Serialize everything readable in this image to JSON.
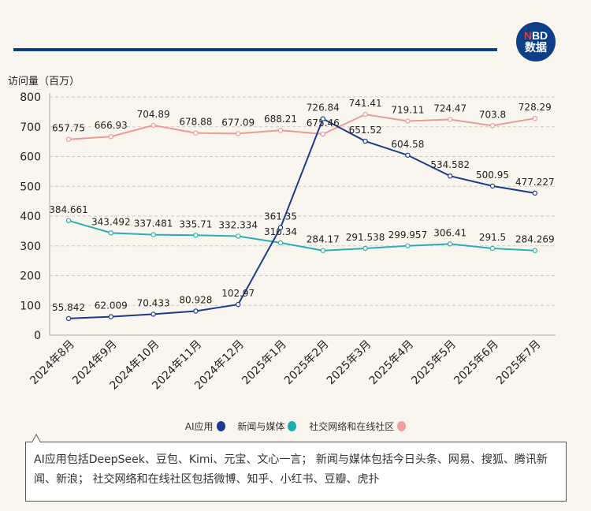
{
  "logo": {
    "line1_n": "N",
    "line1_rest": "BD",
    "line2": "数据"
  },
  "chart_data": {
    "type": "line",
    "ylabel": "访问量（百万）",
    "ylim": [
      0,
      800
    ],
    "yticks": [
      0,
      100,
      200,
      300,
      400,
      500,
      600,
      700,
      800
    ],
    "grid": true,
    "legend_position": "bottom",
    "categories": [
      "2024年8月",
      "2024年9月",
      "2024年10月",
      "2024年11月",
      "2024年12月",
      "2025年1月",
      "2025年2月",
      "2025年3月",
      "2025年4月",
      "2025年5月",
      "2025年6月",
      "2025年7月"
    ],
    "series": [
      {
        "name": "AI应用",
        "color": "#1f3a8a",
        "values": [
          55.842,
          62.009,
          70.433,
          80.928,
          102.97,
          361.35,
          726.84,
          651.52,
          604.58,
          534.582,
          500.95,
          477.227
        ],
        "labels": [
          "55.842",
          "62.009",
          "70.433",
          "80.928",
          "102.97",
          "361.35",
          "726.84",
          "651.52",
          "604.58",
          "534.582",
          "500.95",
          "477.227"
        ]
      },
      {
        "name": "新闻与媒体",
        "color": "#2ab0b0",
        "values": [
          384.661,
          343.492,
          337.481,
          335.71,
          332.334,
          310.34,
          284.17,
          291.538,
          299.957,
          306.41,
          291.5,
          284.269
        ],
        "labels": [
          "384.661",
          "343.492",
          "337.481",
          "335.71",
          "332.334",
          "310.34",
          "284.17",
          "291.538",
          "299.957",
          "306.41",
          "291.5",
          "284.269"
        ]
      },
      {
        "name": "社交网络和在线社区",
        "color": "#ec9a98",
        "values": [
          657.75,
          666.93,
          704.89,
          678.88,
          677.09,
          688.21,
          675.46,
          741.41,
          719.11,
          724.47,
          703.8,
          728.29
        ],
        "labels": [
          "657.75",
          "666.93",
          "704.89",
          "678.88",
          "677.09",
          "688.21",
          "675.46",
          "741.41",
          "719.11",
          "724.47",
          "703.8",
          "728.29"
        ]
      }
    ]
  },
  "legend_dot_colors": [
    "#1b3a94",
    "#1aacb0",
    "#f0a09c"
  ],
  "note": "AI应用包括DeepSeek、豆包、Kimi、元宝、文心一言； 新闻与媒体包括今日头条、网易、搜狐、腾讯新闻、新浪； 社交网络和在线社区包括微博、知乎、小红书、豆瓣、虎扑"
}
